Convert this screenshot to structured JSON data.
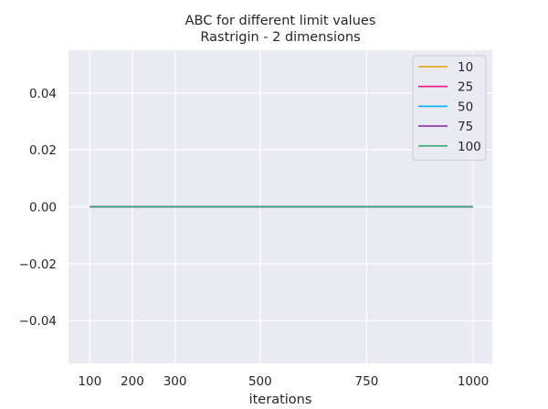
{
  "chart_data": {
    "type": "line",
    "title": "ABC for different limit values",
    "subtitle": "Rastrigin - 2 dimensions",
    "xlabel": "iterations",
    "ylabel": "",
    "x": [
      100,
      200,
      300,
      500,
      750,
      1000
    ],
    "x_ticks": [
      "100",
      "200",
      "300",
      "500",
      "750",
      "1000"
    ],
    "xlim": [
      50,
      1045
    ],
    "ylim": [
      -0.055,
      0.055
    ],
    "y_ticks": [
      "−0.04",
      "−0.02",
      "0.00",
      "0.02",
      "0.04"
    ],
    "y_tick_values": [
      -0.04,
      -0.02,
      0.0,
      0.02,
      0.04
    ],
    "grid": true,
    "legend_position": "upper right",
    "series": [
      {
        "name": "10",
        "color": "#e69f00",
        "values": [
          0,
          0,
          0,
          0,
          0,
          0
        ]
      },
      {
        "name": "25",
        "color": "#e8178a",
        "values": [
          0,
          0,
          0,
          0,
          0,
          0
        ]
      },
      {
        "name": "50",
        "color": "#00aeef",
        "values": [
          0,
          0,
          0,
          0,
          0,
          0
        ]
      },
      {
        "name": "75",
        "color": "#8e2ca6",
        "values": [
          0,
          0,
          0,
          0,
          0,
          0
        ]
      },
      {
        "name": "100",
        "color": "#3aab70",
        "values": [
          0,
          0,
          0,
          0,
          0,
          0
        ]
      }
    ],
    "plot_background": "#eaeaf2",
    "grid_color": "#ffffff"
  }
}
